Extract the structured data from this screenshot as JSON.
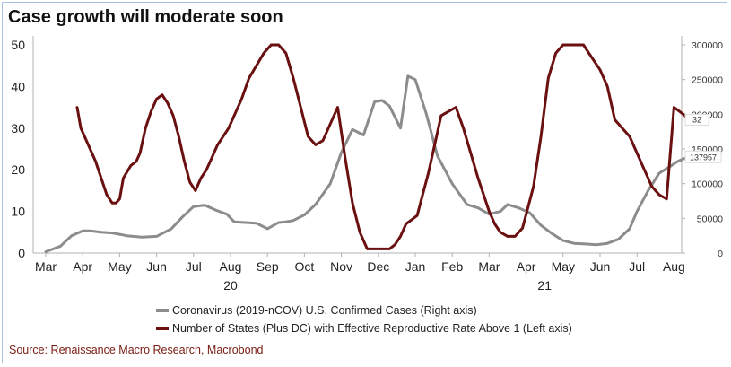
{
  "title": "Case growth will moderate soon",
  "source": "Source: Renaissance Macro Research, Macrobond",
  "colors": {
    "cases": "#8c8c8c",
    "states": "#6b1010",
    "axis": "#b0b0b0"
  },
  "chart_data": {
    "type": "line",
    "x_unit": "month index (0 = early Mar 2020)",
    "xticks": [
      "Mar",
      "Apr",
      "May",
      "Jun",
      "Jul",
      "Aug",
      "Sep",
      "Oct",
      "Nov",
      "Dec",
      "Jan",
      "Feb",
      "Mar",
      "Apr",
      "May",
      "Jun",
      "Jul",
      "Aug"
    ],
    "year_labels": [
      {
        "label": "20",
        "at": 5
      },
      {
        "label": "21",
        "at": 13.5
      }
    ],
    "left_axis": {
      "ylim": [
        0,
        50
      ],
      "ticks": [
        "0",
        "10",
        "20",
        "30",
        "40",
        "50"
      ]
    },
    "right_axis": {
      "ylim": [
        0,
        300000
      ],
      "ticks": [
        "0",
        "50000",
        "100000",
        "150000",
        "200000",
        "250000",
        "300000"
      ]
    },
    "end_labels": {
      "cases": "137957",
      "states": "32"
    },
    "series": [
      {
        "name": "Coronavirus (2019-nCOV) U.S. Confirmed Cases (Right axis)",
        "axis": "right",
        "x": [
          0,
          0.4,
          0.7,
          1.0,
          1.2,
          1.5,
          1.8,
          2.2,
          2.6,
          3.0,
          3.4,
          3.7,
          4.0,
          4.3,
          4.6,
          4.9,
          5.1,
          5.4,
          5.7,
          6.0,
          6.3,
          6.5,
          6.7,
          7.0,
          7.3,
          7.7,
          8.0,
          8.3,
          8.6,
          8.9,
          9.1,
          9.3,
          9.6,
          9.8,
          10.0,
          10.3,
          10.6,
          11.0,
          11.4,
          11.7,
          12.0,
          12.3,
          12.5,
          12.8,
          13.1,
          13.4,
          13.7,
          14.0,
          14.3,
          14.6,
          14.9,
          15.2,
          15.5,
          15.8,
          16.0,
          16.3,
          16.6,
          16.9,
          17.1,
          17.35
        ],
        "values": [
          2000,
          10000,
          25000,
          32000,
          32000,
          30000,
          29000,
          25000,
          23000,
          24000,
          35000,
          52000,
          67000,
          69000,
          62000,
          56000,
          45000,
          44000,
          43000,
          35000,
          44000,
          45000,
          47000,
          55000,
          70000,
          100000,
          145000,
          178000,
          170000,
          218000,
          220000,
          212000,
          180000,
          255000,
          250000,
          200000,
          140000,
          100000,
          70000,
          65000,
          56000,
          60000,
          70000,
          65000,
          58000,
          40000,
          28000,
          18000,
          14000,
          13000,
          12000,
          14000,
          20000,
          35000,
          60000,
          90000,
          115000,
          125000,
          132000,
          137957
        ]
      },
      {
        "name": "Number of States (Plus DC) with Effective Reproductive Rate Above 1 (Left axis)",
        "axis": "left",
        "x": [
          0.85,
          0.95,
          1.05,
          1.15,
          1.25,
          1.35,
          1.5,
          1.65,
          1.8,
          1.9,
          2.0,
          2.1,
          2.3,
          2.45,
          2.55,
          2.7,
          2.85,
          3.0,
          3.15,
          3.3,
          3.45,
          3.6,
          3.75,
          3.9,
          4.05,
          4.2,
          4.35,
          4.5,
          4.65,
          4.8,
          4.95,
          5.1,
          5.3,
          5.5,
          5.7,
          5.9,
          6.1,
          6.3,
          6.5,
          6.7,
          6.9,
          7.1,
          7.3,
          7.5,
          7.7,
          7.9,
          8.1,
          8.3,
          8.5,
          8.7,
          8.9,
          9.1,
          9.3,
          9.45,
          9.6,
          9.75,
          9.9,
          10.05,
          10.2,
          10.35,
          10.5,
          10.7,
          10.9,
          11.1,
          11.3,
          11.5,
          11.7,
          11.85,
          12.0,
          12.15,
          12.3,
          12.5,
          12.7,
          12.9,
          13.05,
          13.2,
          13.4,
          13.6,
          13.8,
          14.0,
          14.2,
          14.4,
          14.55,
          14.7,
          14.85,
          15.0,
          15.2,
          15.4,
          15.6,
          15.8,
          16.0,
          16.2,
          16.4,
          16.6,
          16.8,
          17.0,
          17.15,
          17.3,
          17.35
        ],
        "values": [
          35,
          30,
          28,
          26,
          24,
          22,
          18,
          14,
          12,
          12,
          13,
          18,
          21,
          22,
          24,
          30,
          34,
          37,
          38,
          36,
          33,
          28,
          22,
          17,
          15,
          18,
          20,
          23,
          26,
          28,
          30,
          33,
          37,
          42,
          45,
          48,
          50,
          50,
          48,
          42,
          35,
          28,
          26,
          27,
          31,
          35,
          23,
          12,
          5,
          1,
          1,
          1,
          1,
          2,
          4,
          7,
          8,
          9,
          14,
          19,
          25,
          33,
          34,
          35,
          30,
          24,
          18,
          14,
          10,
          7,
          5,
          4,
          4,
          6,
          11,
          16,
          28,
          42,
          48,
          50,
          50,
          50,
          50,
          48,
          46,
          44,
          40,
          32,
          30,
          28,
          24,
          20,
          16,
          14,
          13,
          35,
          34,
          33,
          32
        ]
      }
    ]
  }
}
